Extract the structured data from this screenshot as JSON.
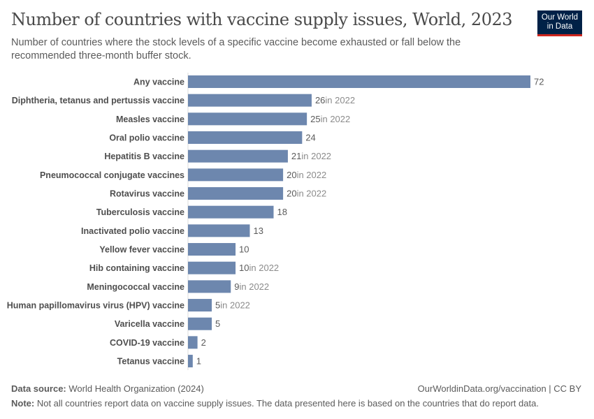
{
  "header": {
    "title": "Number of countries with vaccine supply issues, World, 2023",
    "subtitle": "Number of countries where the stock levels of a specific vaccine become exhausted or fall below the recommended three-month buffer stock.",
    "logo": "Our World in Data"
  },
  "chart_data": {
    "type": "bar",
    "orientation": "horizontal",
    "color": "#6d87ae",
    "categories": [
      "Any vaccine",
      "Diphtheria, tetanus and pertussis vaccine",
      "Measles vaccine",
      "Oral polio vaccine",
      "Hepatitis B vaccine",
      "Pneumococcal conjugate vaccines",
      "Rotavirus vaccine",
      "Tuberculosis vaccine",
      "Inactivated polio vaccine",
      "Yellow fever vaccine",
      "Hib containing vaccine",
      "Meningococcal vaccine",
      "Human papillomavirus virus (HPV) vaccine",
      "Varicella vaccine",
      "COVID-19 vaccine",
      "Tetanus vaccine"
    ],
    "values": [
      72,
      26,
      25,
      24,
      21,
      20,
      20,
      18,
      13,
      10,
      10,
      9,
      5,
      5,
      2,
      1
    ],
    "value_notes": [
      "",
      "in 2022",
      "in 2022",
      "",
      "in 2022",
      "in 2022",
      "in 2022",
      "",
      "",
      "",
      "in 2022",
      "in 2022",
      "in 2022",
      "",
      "",
      ""
    ]
  },
  "footer": {
    "source_label": "Data source:",
    "source": "World Health Organization (2024)",
    "url": "OurWorldinData.org/vaccination | CC BY",
    "note_label": "Note:",
    "note": "Not all countries report data on vaccine supply issues. The data presented here is based on the countries that do report data."
  }
}
